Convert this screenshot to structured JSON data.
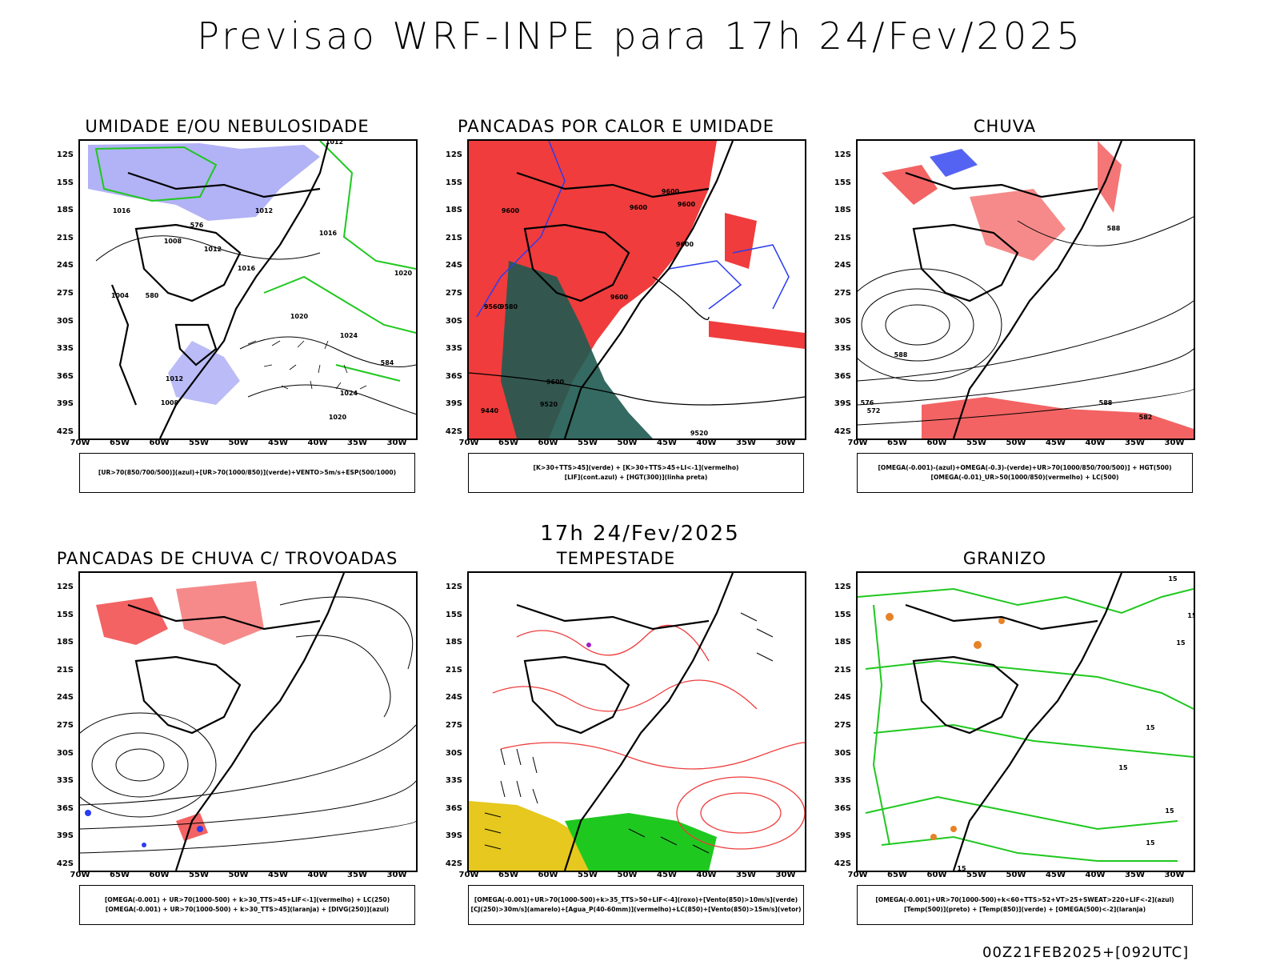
{
  "header": {
    "title": "Previsao WRF-INPE  para 17h 24/Fev/2025"
  },
  "middle": {
    "title": "17h 24/Fev/2025"
  },
  "footer": {
    "run": "00Z21FEB2025+[092UTC]"
  },
  "axes": {
    "lat_ticks": [
      "12S",
      "15S",
      "18S",
      "21S",
      "24S",
      "27S",
      "30S",
      "33S",
      "36S",
      "39S",
      "42S"
    ],
    "lon_ticks": [
      "70W",
      "65W",
      "60W",
      "55W",
      "50W",
      "45W",
      "40W",
      "35W",
      "30W"
    ]
  },
  "colors": {
    "azul": "#2a3cf0",
    "verde": "#1fc81f",
    "vermelho": "#f03c3c",
    "lavanda": "#aaaaf5",
    "verde_escuro": "#1e5a50",
    "amarelo": "#e6c81e",
    "laranja": "#e68228",
    "roxo": "#a020c8"
  },
  "panels": [
    {
      "title": "UMIDADE E/OU NEBULOSIDADE",
      "legend": [
        "[UR>70(850/700/500)](azul)+[UR>70(1000/850)](verde)+VENTO>5m/s+ESP(500/1000)"
      ]
    },
    {
      "title": "PANCADAS POR CALOR E UMIDADE",
      "legend": [
        "[K>30+TTS>45](verde)  +  [K>30+TTS>45+LI<-1](vermelho)",
        "[LIF](cont.azul)  +  [HGT(300)](linha preta)"
      ]
    },
    {
      "title": "CHUVA",
      "legend": [
        "[OMEGA(-0.001)-(azul)+OMEGA(-0.3)-(verde)+UR>70(1000/850/700/500)]  +  HGT(500)",
        "[OMEGA(-0.01)_UR>50(1000/850)(vermelho)  +  LC(500)"
      ]
    },
    {
      "title": "PANCADAS DE CHUVA C/ TROVOADAS",
      "legend": [
        "[OMEGA(-0.001)  +  UR>70(1000-500)  +  k>30_TTS>45+LIF<-1](vermelho)  +  LC(250)",
        "[OMEGA(-0.001)  +  UR>70(1000-500)  +  k>30_TTS>45](laranja)  +  [DIVG(250)](azul)"
      ]
    },
    {
      "title": "TEMPESTADE",
      "legend": [
        "[OMEGA(-0.001)+UR>70(1000-500)+k>35_TTS>50+LIF<-4](roxo)+[Vento(850)>10m/s](verde)",
        "[CJ(250)>30m/s](amarelo)+[Agua_P(40-60mm)](vermelho)+LC(850)+[Vento(850)>15m/s](vetor)"
      ]
    },
    {
      "title": "GRANIZO",
      "legend": [
        "[OMEGA(-0.001)+UR>70(1000-500)+k<60+TTS>52+VT>25+SWEAT>220+LIF<-2](azul)",
        "[Temp(500)](preto)  +  [Temp(850)](verde)  +  [OMEGA(500)<-2](laranja)"
      ]
    }
  ],
  "map_labels": {
    "p0": [
      "1012",
      "1016",
      "1012",
      "1016",
      "1020",
      "1008",
      "1012",
      "1016",
      "1020",
      "1024",
      "1024",
      "1020",
      "1008",
      "1012",
      "1004",
      "576",
      "580",
      "584"
    ],
    "p1": [
      "9600",
      "9600",
      "9600",
      "9600",
      "9580",
      "9560",
      "9600",
      "9600",
      "9520",
      "9440",
      "9600",
      "9520"
    ],
    "p2": [
      "588",
      "588",
      "576",
      "572",
      "588",
      "582"
    ],
    "p5": [
      "15",
      "15",
      "15",
      "15",
      "15",
      "15",
      "15",
      "15"
    ]
  }
}
